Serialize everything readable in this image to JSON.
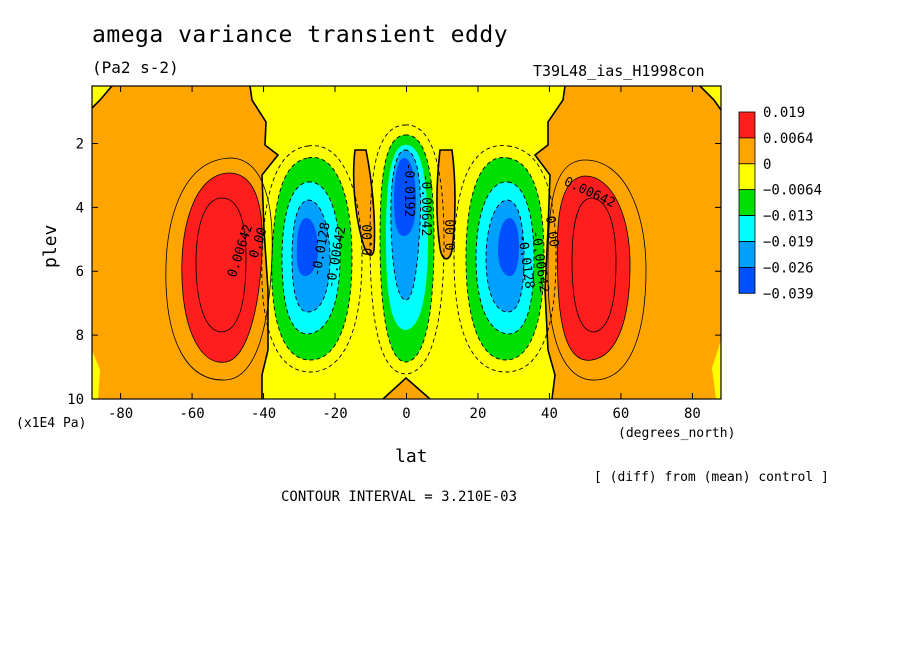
{
  "title": "amega variance transient eddy",
  "units": "(Pa2 s-2)",
  "run_name": "T39L48_ias_H1998con",
  "note_diff": "[ (diff) from (mean) control ]",
  "contour_interval": "CONTOUR INTERVAL = 3.210E-03",
  "chart_data": {
    "type": "heatmap",
    "subtype": "filled-contour",
    "xlabel": "lat",
    "xunit": "(degrees_north)",
    "ylabel": "plev",
    "yunit": "(x1E4 Pa)",
    "xlim": [
      -88,
      88
    ],
    "ylim": [
      10,
      0.2
    ],
    "x_ticks": [
      -80,
      -60,
      -40,
      -20,
      0,
      20,
      40,
      60,
      80
    ],
    "x_tick_labels": [
      "-80",
      "-60",
      "-40",
      "-20",
      "0",
      "20",
      "40",
      "60",
      "80"
    ],
    "y_ticks": [
      2,
      4,
      6,
      8,
      10
    ],
    "y_tick_labels": [
      "2",
      "4",
      "6",
      "8",
      "10"
    ],
    "colorbar": {
      "levels": [
        "0.019",
        "0.0064",
        "0",
        "−0.0064",
        "−0.013",
        "−0.019",
        "−0.026",
        "−0.039"
      ],
      "colors": [
        "#ff1e1e",
        "#ffa500",
        "#ffff00",
        "#00e000",
        "#00ffff",
        "#00a0ff",
        "#0050ff"
      ]
    },
    "contour_labels": [
      "0.00642",
      "0.00",
      "-0.0128",
      "-0.00642",
      "0.00",
      "-0.0192",
      "-0.00642",
      "0.00",
      "-0.0128",
      "-0.00642",
      "0.00",
      "0.00642"
    ],
    "features": [
      {
        "name": "positive maximum",
        "lat": -55,
        "plev": 5.8,
        "value_range": "> 0.0064"
      },
      {
        "name": "negative minimum",
        "lat": -28,
        "plev": 5.0,
        "value_range": "< -0.026"
      },
      {
        "name": "negative minimum",
        "lat": 0,
        "plev": 3.5,
        "value_range": "< -0.026"
      },
      {
        "name": "negative minimum",
        "lat": 28,
        "plev": 5.0,
        "value_range": "< -0.026"
      },
      {
        "name": "positive maximum",
        "lat": 55,
        "plev": 5.8,
        "value_range": "> 0.0064"
      }
    ]
  }
}
